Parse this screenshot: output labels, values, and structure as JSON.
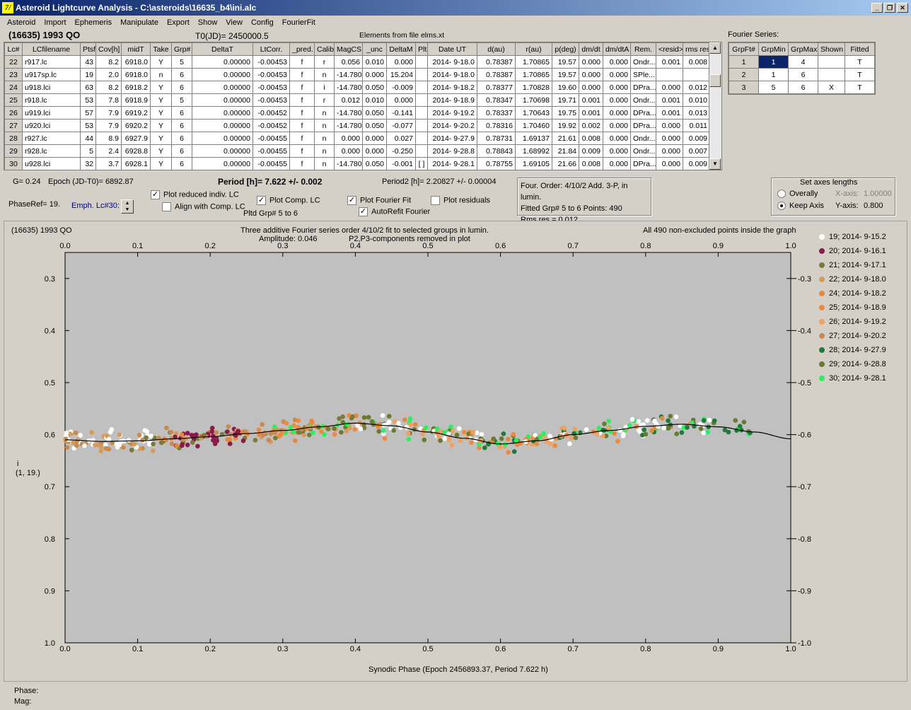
{
  "window": {
    "title": "Asteroid Lightcurve Analysis - C:\\asteroids\\16635_b4\\ini.alc",
    "icon": "7/"
  },
  "menu": [
    "Asteroid",
    "Import",
    "Ephemeris",
    "Manipulate",
    "Export",
    "Show",
    "View",
    "Config",
    "FourierFit"
  ],
  "header": {
    "object": "(16635) 1993 QO",
    "t0": "T0(JD)= 2450000.5",
    "elements": "Elements from file elms.xt"
  },
  "table": {
    "columns": [
      "Lc#",
      "LCfilename",
      "Ptsf",
      "Cov[h]",
      "midT",
      "Take",
      "Grp#",
      "DeltaT",
      "LtCorr.",
      "_pred.",
      "Calib.",
      "MagCS",
      "_unc",
      "DeltaM",
      "Plt",
      "Date UT",
      "d(au)",
      "r(au)",
      "p(deg)",
      "dm/dt",
      "dm/dtA",
      "Rem.",
      "<resid>",
      "rms res"
    ],
    "rows": [
      [
        "22",
        "r917.lc",
        "43",
        "8.2",
        "6918.0",
        "Y",
        "5",
        "0.00000",
        "-0.00453",
        "f",
        "r",
        "0.056",
        "0.010",
        "0.000",
        "",
        "2014- 9-18.0",
        "0.78387",
        "1.70865",
        "19.57",
        "0.000",
        "0.000",
        "Ondr...",
        "0.001",
        "0.008"
      ],
      [
        "23",
        "u917sp.lc",
        "19",
        "2.0",
        "6918.0",
        "n",
        "6",
        "0.00000",
        "-0.00453",
        "f",
        "n",
        "-14.780",
        "0.000",
        "15.204",
        "",
        "2014- 9-18.0",
        "0.78387",
        "1.70865",
        "19.57",
        "0.000",
        "0.000",
        "SPle...",
        "",
        ""
      ],
      [
        "24",
        "u918.lci",
        "63",
        "8.2",
        "6918.2",
        "Y",
        "6",
        "0.00000",
        "-0.00453",
        "f",
        "i",
        "-14.780",
        "0.050",
        "-0.009",
        "",
        "2014- 9-18.2",
        "0.78377",
        "1.70828",
        "19.60",
        "0.000",
        "0.000",
        "DPra...",
        "0.000",
        "0.012"
      ],
      [
        "25",
        "r918.lc",
        "53",
        "7.8",
        "6918.9",
        "Y",
        "5",
        "0.00000",
        "-0.00453",
        "f",
        "r",
        "0.012",
        "0.010",
        "0.000",
        "",
        "2014- 9-18.9",
        "0.78347",
        "1.70698",
        "19.71",
        "0.001",
        "0.000",
        "Ondr...",
        "0.001",
        "0.010"
      ],
      [
        "26",
        "u919.lci",
        "57",
        "7.9",
        "6919.2",
        "Y",
        "6",
        "0.00000",
        "-0.00452",
        "f",
        "n",
        "-14.780",
        "0.050",
        "-0.141",
        "",
        "2014- 9-19.2",
        "0.78337",
        "1.70643",
        "19.75",
        "0.001",
        "0.000",
        "DPra...",
        "0.001",
        "0.013"
      ],
      [
        "27",
        "u920.lci",
        "53",
        "7.9",
        "6920.2",
        "Y",
        "6",
        "0.00000",
        "-0.00452",
        "f",
        "n",
        "-14.780",
        "0.050",
        "-0.077",
        "",
        "2014- 9-20.2",
        "0.78316",
        "1.70460",
        "19.92",
        "0.002",
        "0.000",
        "DPra...",
        "0.000",
        "0.011"
      ],
      [
        "28",
        "r927.lc",
        "44",
        "8.9",
        "6927.9",
        "Y",
        "6",
        "0.00000",
        "-0.00455",
        "f",
        "n",
        "0.000",
        "0.000",
        "0.027",
        "",
        "2014- 9-27.9",
        "0.78731",
        "1.69137",
        "21.61",
        "0.008",
        "0.000",
        "Ondr...",
        "0.000",
        "0.009"
      ],
      [
        "29",
        "r928.lc",
        "5",
        "2.4",
        "6928.8",
        "Y",
        "6",
        "0.00000",
        "-0.00455",
        "f",
        "n",
        "0.000",
        "0.000",
        "-0.250",
        "",
        "2014- 9-28.8",
        "0.78843",
        "1.68992",
        "21.84",
        "0.009",
        "0.000",
        "Ondr...",
        "0.000",
        "0.007"
      ],
      [
        "30",
        "u928.lci",
        "32",
        "3.7",
        "6928.1",
        "Y",
        "6",
        "0.00000",
        "-0.00455",
        "f",
        "n",
        "-14.780",
        "0.050",
        "-0.001",
        "[ ]",
        "2014- 9-28.1",
        "0.78755",
        "1.69105",
        "21.66",
        "0.008",
        "0.000",
        "DPra...",
        "0.000",
        "0.009"
      ]
    ]
  },
  "fourier": {
    "title": "Fourier Series:",
    "columns": [
      "GrpFt#",
      "GrpMin",
      "GrpMax",
      "Shown",
      "Fitted"
    ],
    "rows": [
      [
        "1",
        "1",
        "4",
        "",
        "T"
      ],
      [
        "2",
        "1",
        "6",
        "",
        "T"
      ],
      [
        "3",
        "5",
        "6",
        "X",
        "T"
      ]
    ]
  },
  "controls": {
    "g": "G= 0.24",
    "epoch": "Epoch (JD-T0)= 6892.87",
    "period": "Period [h]= 7.622 +/- 0.002",
    "period2": "Period2 [h]= 2.20827 +/- 0.00004",
    "phaseref": "PhaseRef= 19.",
    "emph": "Emph. Lc#30:",
    "plot_reduced": "Plot reduced indiv. LC",
    "align": "Align with Comp. LC",
    "plot_comp": "Plot Comp. LC",
    "pltd_grp": "Pltd Grp#  5  to  6",
    "plot_fourier": "Plot Fourier Fit",
    "autorefit": "AutoRefit Fourier",
    "plot_resid": "Plot residuals",
    "info1": "Four. Order:  4/10/2 Add. 3-P, in lumin.",
    "info2": "Fitted Grp# 5 to 6    Points: 490",
    "info3": "Rms res     = 0.012",
    "axes_title": "Set axes lengths",
    "overall": "Overally",
    "keep": "Keep Axis",
    "xaxis_label": "X-axis:",
    "xaxis_val": "1.00000",
    "yaxis_label": "Y-axis:",
    "yaxis_val": "0.800"
  },
  "plot": {
    "object": "(16635) 1993 QO",
    "title1": "Three additive Fourier series order 4/10/2 fit to selected groups in lumin.",
    "title2": "Amplitude: 0.046",
    "title3": "P2,P3-components removed in plot",
    "note": "All 490 non-excluded points inside the graph",
    "xlabel": "Synodic Phase (Epoch 2456893.37, Period 7.622 h)",
    "ylabel1": "i",
    "ylabel2": "(1, 19.)",
    "xticks": [
      "0.0",
      "0.1",
      "0.2",
      "0.3",
      "0.4",
      "0.5",
      "0.6",
      "0.7",
      "0.8",
      "0.9",
      "1.0"
    ],
    "yticks": [
      "0.3",
      "0.4",
      "0.5",
      "0.6",
      "0.7",
      "0.8",
      "0.9",
      "1.0"
    ],
    "legend": [
      {
        "label": "19; 2014- 9-15.2",
        "color": "#ffffff"
      },
      {
        "label": "20; 2014- 9-16.1",
        "color": "#8b1a4a"
      },
      {
        "label": "21; 2014- 9-17.1",
        "color": "#7a7a3a"
      },
      {
        "label": "22; 2014- 9-18.0",
        "color": "#d89a58"
      },
      {
        "label": "24; 2014- 9-18.2",
        "color": "#e8883a"
      },
      {
        "label": "25; 2014- 9-18.9",
        "color": "#f08a3a"
      },
      {
        "label": "26; 2014- 9-19.2",
        "color": "#f0a060"
      },
      {
        "label": "27; 2014- 9-20.2",
        "color": "#c88a50"
      },
      {
        "label": "28; 2014- 9-27.9",
        "color": "#1f7a3a"
      },
      {
        "label": "29; 2014- 9-28.8",
        "color": "#6a7a30"
      },
      {
        "label": "30; 2014- 9-28.1",
        "color": "#2af060"
      }
    ]
  },
  "status": {
    "phase": "Phase:",
    "mag": "Mag:"
  },
  "chart_data": {
    "type": "scatter",
    "xlim": [
      0.0,
      1.0
    ],
    "ylim": [
      0.25,
      1.0
    ],
    "y_inverted": true,
    "grid": false,
    "n_points": 490,
    "fit_curve": {
      "x": [
        0.0,
        0.05,
        0.1,
        0.15,
        0.2,
        0.25,
        0.3,
        0.35,
        0.4,
        0.45,
        0.5,
        0.55,
        0.6,
        0.65,
        0.7,
        0.75,
        0.8,
        0.85,
        0.9,
        0.95,
        1.0
      ],
      "y": [
        0.61,
        0.613,
        0.612,
        0.608,
        0.604,
        0.598,
        0.592,
        0.585,
        0.578,
        0.583,
        0.595,
        0.607,
        0.618,
        0.612,
        0.6,
        0.592,
        0.584,
        0.58,
        0.585,
        0.595,
        0.608
      ]
    }
  }
}
